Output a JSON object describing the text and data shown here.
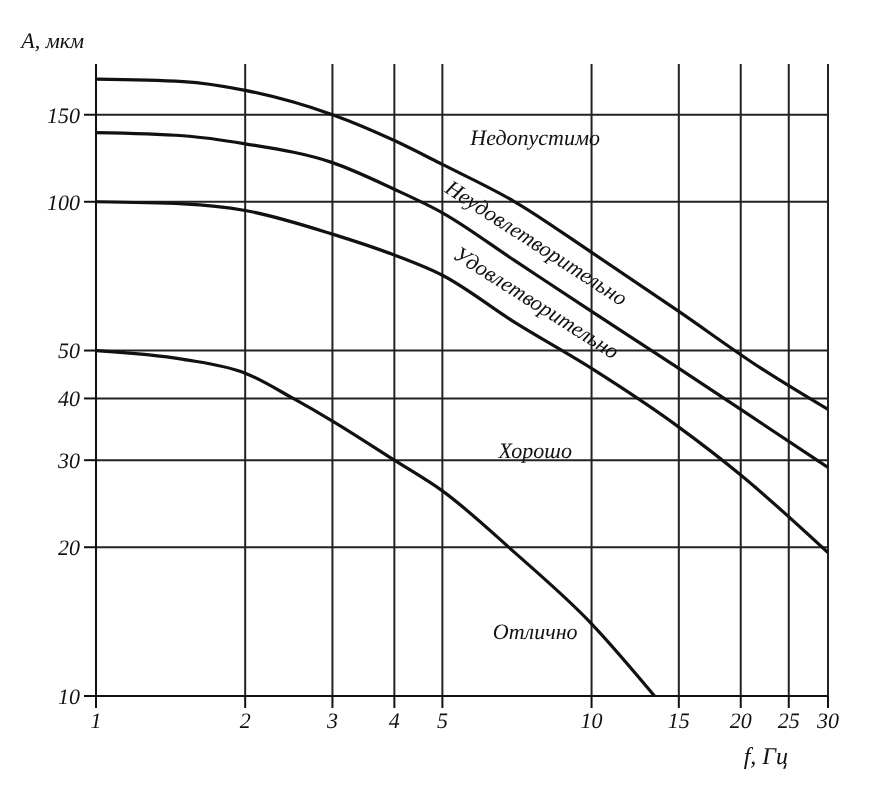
{
  "chart_data": {
    "type": "line",
    "xlabel": "f, Гц",
    "ylabel": "A, мкм",
    "log": "xy",
    "grid": true,
    "legend": false,
    "marker": "none",
    "line_style": "solid",
    "xlim": [
      1,
      30
    ],
    "xticks": [
      1,
      2,
      3,
      4,
      5,
      10,
      15,
      20,
      25,
      30
    ],
    "ylim": [
      10,
      190
    ],
    "yticks": [
      10,
      20,
      30,
      40,
      50,
      100,
      150
    ],
    "series": [
      {
        "color": "#111111",
        "x": [
          1,
          1.5,
          2,
          3,
          4,
          5,
          7,
          10,
          15,
          22,
          30
        ],
        "values": [
          177,
          175,
          168,
          150,
          133,
          119,
          100,
          79,
          60,
          46,
          38
        ]
      },
      {
        "color": "#111111",
        "x": [
          1,
          1.5,
          2,
          3,
          4,
          5,
          7,
          10,
          15,
          20,
          30
        ],
        "values": [
          138,
          136,
          131,
          120,
          106,
          95,
          76,
          60,
          46,
          38,
          29
        ]
      },
      {
        "color": "#111111",
        "x": [
          1,
          1.5,
          2,
          3,
          4,
          5,
          7,
          10,
          15,
          20,
          30
        ],
        "values": [
          100,
          99,
          96,
          86,
          78,
          71,
          57,
          46,
          35,
          28,
          19.5
        ]
      },
      {
        "color": "#111111",
        "x": [
          1,
          1.5,
          2,
          2.5,
          3,
          4,
          5,
          7,
          10,
          13.4
        ],
        "values": [
          50,
          48,
          45,
          40,
          36,
          30,
          26,
          19.5,
          14,
          10
        ]
      }
    ],
    "annotations": [
      "Недопустимо",
      "Неудовлетворительно",
      "Удовлетворительно",
      "Хорошо",
      "Отлично"
    ]
  }
}
